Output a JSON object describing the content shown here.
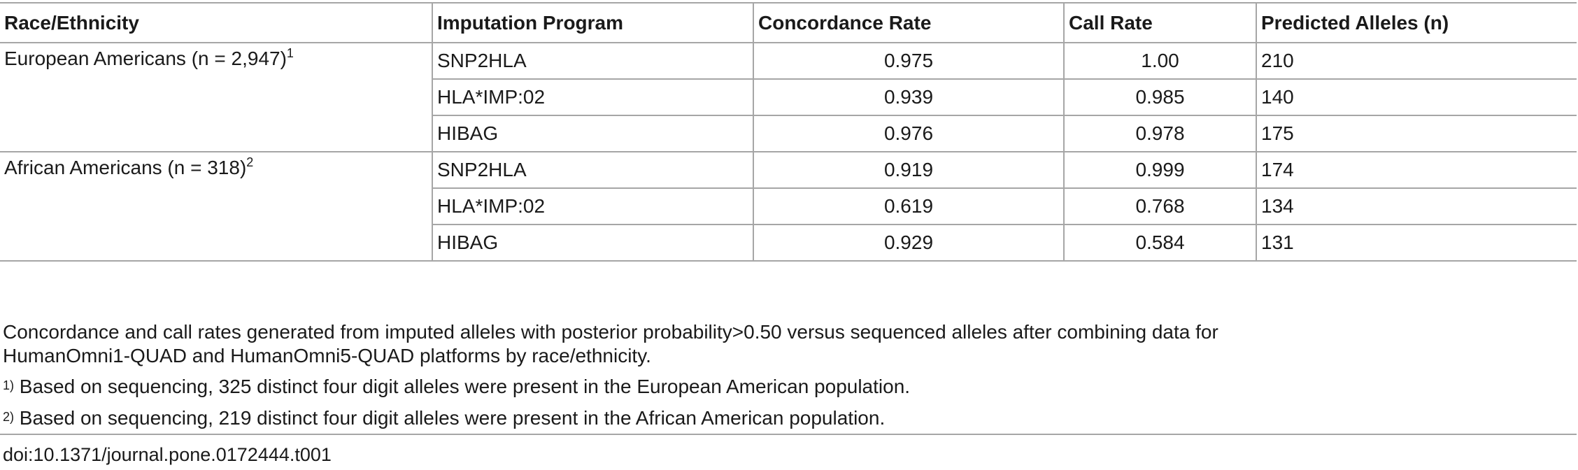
{
  "table": {
    "headers": [
      "Race/Ethnicity",
      "Imputation Program",
      "Concordance Rate",
      "Call Rate",
      "Predicted Alleles (n)"
    ],
    "groups": [
      {
        "label": "European Americans (n = 2,947)",
        "sup": "1",
        "rows": [
          {
            "program": "SNP2HLA",
            "concordance": "0.975",
            "call_rate": "1.00",
            "alleles": "210"
          },
          {
            "program": "HLA*IMP:02",
            "concordance": "0.939",
            "call_rate": "0.985",
            "alleles": "140"
          },
          {
            "program": "HIBAG",
            "concordance": "0.976",
            "call_rate": "0.978",
            "alleles": "175"
          }
        ]
      },
      {
        "label": "African Americans (n = 318)",
        "sup": "2",
        "rows": [
          {
            "program": "SNP2HLA",
            "concordance": "0.919",
            "call_rate": "0.999",
            "alleles": "174"
          },
          {
            "program": "HLA*IMP:02",
            "concordance": "0.619",
            "call_rate": "0.768",
            "alleles": "134"
          },
          {
            "program": "HIBAG",
            "concordance": "0.929",
            "call_rate": "0.584",
            "alleles": "131"
          }
        ]
      }
    ]
  },
  "footnotes": {
    "main_line1": "Concordance and call rates generated from imputed alleles with posterior probability>0.50 versus sequenced alleles after combining data for",
    "main_line2": "HumanOmni1-QUAD and HumanOmni5-QUAD platforms by race/ethnicity.",
    "note1_marker": "1)",
    "note1_text": " Based on sequencing, 325 distinct four digit alleles were present in the European American population.",
    "note2_marker": "2)",
    "note2_text": " Based on sequencing, 219 distinct four digit alleles were present in the African American population."
  },
  "doi": "doi:10.1371/journal.pone.0172444.t001"
}
